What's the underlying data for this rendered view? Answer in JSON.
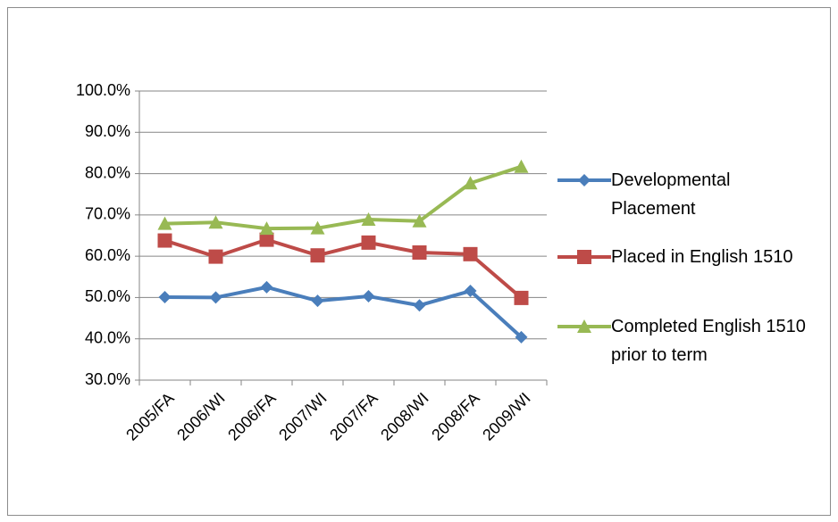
{
  "chart_data": {
    "type": "line",
    "categories": [
      "2005/FA",
      "2006/WI",
      "2006/FA",
      "2007/WI",
      "2007/FA",
      "2008/WI",
      "2008/FA",
      "2009/WI"
    ],
    "series": [
      {
        "name": "Developmental Placement",
        "color": "#4a7ebb",
        "marker": "diamond",
        "values": [
          50.1,
          50.0,
          52.5,
          49.2,
          50.3,
          48.1,
          51.6,
          40.4
        ]
      },
      {
        "name": "Placed in English 1510",
        "color": "#be4b48",
        "marker": "square",
        "values": [
          63.8,
          59.9,
          64.0,
          60.2,
          63.3,
          60.9,
          60.5,
          49.9
        ]
      },
      {
        "name": "Completed English 1510 prior to term",
        "color": "#98b954",
        "marker": "triangle",
        "values": [
          67.9,
          68.2,
          66.7,
          66.8,
          68.9,
          68.5,
          77.7,
          81.7
        ]
      }
    ],
    "ylim": [
      30,
      100
    ],
    "yticks": [
      {
        "value": 30,
        "label": "30.0%"
      },
      {
        "value": 40,
        "label": "40.0%"
      },
      {
        "value": 50,
        "label": "50.0%"
      },
      {
        "value": 60,
        "label": "60.0%"
      },
      {
        "value": 70,
        "label": "70.0%"
      },
      {
        "value": 80,
        "label": "80.0%"
      },
      {
        "value": 90,
        "label": "90.0%"
      },
      {
        "value": 100,
        "label": "100.0%"
      }
    ],
    "grid": true,
    "legend": "right"
  }
}
